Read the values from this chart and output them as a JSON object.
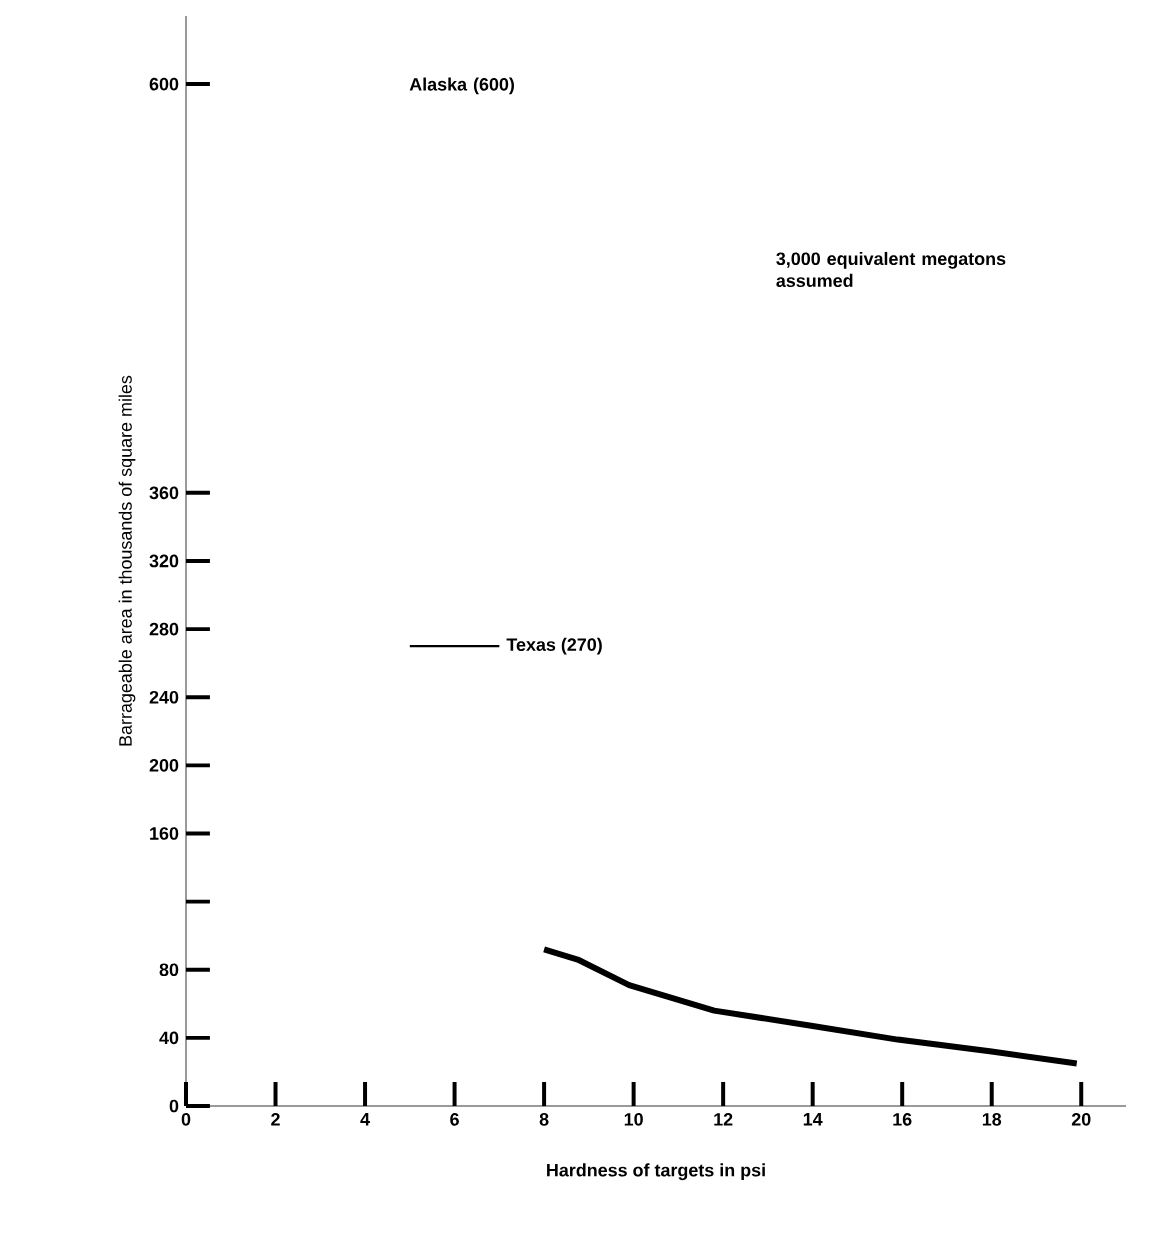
{
  "chart_data": {
    "type": "line",
    "xlabel": "Hardness of targets in psi",
    "ylabel": "Barrageable area in thousands of square miles",
    "series": [
      {
        "color": "#000000",
        "x": [
          8,
          8.75,
          9.9,
          11.8,
          14,
          15.9,
          18,
          19.9
        ],
        "values": [
          92,
          86,
          71,
          56,
          47,
          39,
          32,
          25
        ]
      }
    ],
    "xlim": [
      0,
      21
    ],
    "xticks": [
      0,
      2,
      4,
      6,
      8,
      10,
      12,
      14,
      16,
      18,
      20
    ],
    "ylim": [
      0,
      640
    ],
    "yticks": [
      0,
      40,
      80,
      {
        "value": 120,
        "label": null
      },
      160,
      200,
      240,
      280,
      320,
      360,
      600
    ],
    "ref_lines": [
      {
        "axis": "y",
        "value": 270,
        "label": "Texas (270)"
      }
    ],
    "annotations": [
      "Alaska (600)",
      "3,000 equivalent megatons assumed"
    ],
    "grid": false,
    "marker": "none",
    "line_style": "solid"
  }
}
